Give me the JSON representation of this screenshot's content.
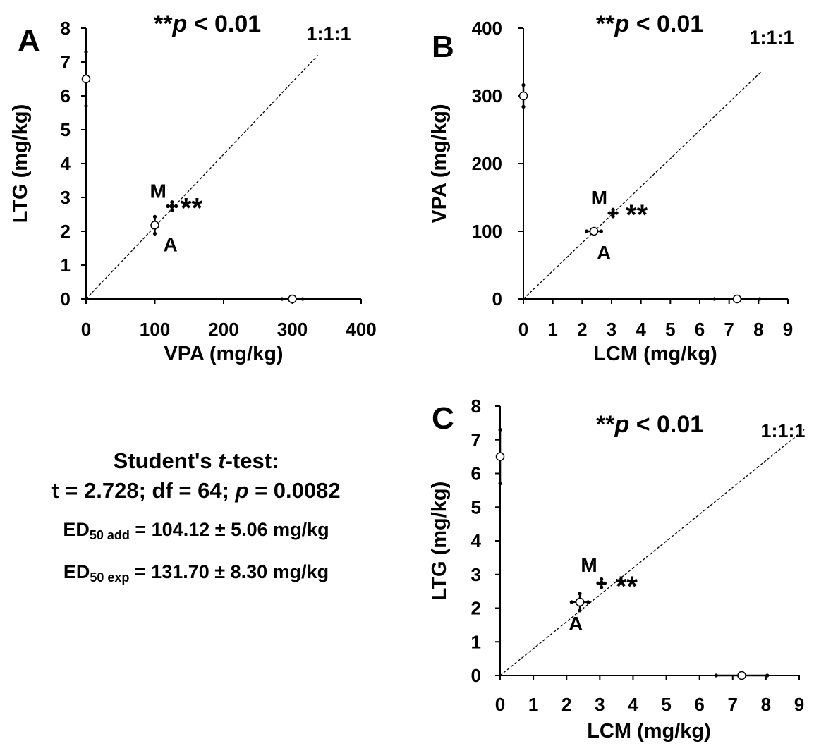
{
  "chart_data": [
    {
      "panel": "A",
      "type": "scatter",
      "xlabel": "VPA (mg/kg)",
      "ylabel": "LTG (mg/kg)",
      "xlim": [
        0,
        400
      ],
      "ylim": [
        0,
        8
      ],
      "xticks": [
        0,
        100,
        200,
        300,
        400
      ],
      "yticks": [
        0,
        1,
        2,
        3,
        4,
        5,
        6,
        7,
        8
      ],
      "significance": "**",
      "p_text": "p",
      "p_cmp": " < 0.01",
      "ratio": "1:1:1",
      "line_end": [
        337,
        7.2
      ],
      "points": [
        {
          "kind": "open",
          "x": 0,
          "y": 6.5,
          "yerr": [
            0.8,
            0.8
          ],
          "xerr": [
            0,
            0
          ]
        },
        {
          "kind": "open",
          "x": 300,
          "y": 0,
          "yerr": [
            0,
            0
          ],
          "xerr": [
            15,
            15
          ]
        },
        {
          "kind": "open",
          "label": "A",
          "x": 100,
          "y": 2.18,
          "yerr": [
            0.25,
            0.25
          ],
          "xerr": [
            0,
            0
          ]
        },
        {
          "kind": "filled",
          "label": "M",
          "stars": "**",
          "x": 125,
          "y": 2.74,
          "yerr": [
            0.12,
            0.12
          ],
          "xerr": [
            6,
            6
          ]
        }
      ]
    },
    {
      "panel": "B",
      "type": "scatter",
      "xlabel": "LCM (mg/kg)",
      "ylabel": "VPA (mg/kg)",
      "xlim": [
        0,
        9
      ],
      "ylim": [
        0,
        400
      ],
      "xticks": [
        0,
        1,
        2,
        3,
        4,
        5,
        6,
        7,
        8,
        9
      ],
      "yticks": [
        0,
        100,
        200,
        300,
        400
      ],
      "significance": "**",
      "p_text": "p",
      "p_cmp": " < 0.01",
      "ratio": "1:1:1",
      "line_end": [
        8.1,
        336
      ],
      "points": [
        {
          "kind": "open",
          "x": 0,
          "y": 300,
          "yerr": [
            16,
            16
          ],
          "xerr": [
            0,
            0
          ]
        },
        {
          "kind": "open",
          "x": 7.27,
          "y": 0,
          "yerr": [
            0,
            0
          ],
          "xerr": [
            0.77,
            0.77
          ]
        },
        {
          "kind": "open",
          "label": "A",
          "x": 2.4,
          "y": 100,
          "yerr": [
            0,
            0
          ],
          "xerr": [
            0.25,
            0.25
          ]
        },
        {
          "kind": "filled",
          "label": "M",
          "stars": "**",
          "x": 3.05,
          "y": 127,
          "yerr": [
            5,
            5
          ],
          "xerr": [
            0.12,
            0.12
          ]
        }
      ]
    },
    {
      "panel": "C",
      "type": "scatter",
      "xlabel": "LCM (mg/kg)",
      "ylabel": "LTG (mg/kg)",
      "xlim": [
        0,
        9
      ],
      "ylim": [
        0,
        8
      ],
      "xticks": [
        0,
        1,
        2,
        3,
        4,
        5,
        6,
        7,
        8,
        9
      ],
      "yticks": [
        0,
        1,
        2,
        3,
        4,
        5,
        6,
        7,
        8
      ],
      "significance": "**",
      "p_text": "p",
      "p_cmp": " < 0.01",
      "ratio": "1:1:1",
      "line_end": [
        9.15,
        7.3
      ],
      "points": [
        {
          "kind": "open",
          "x": 0,
          "y": 6.5,
          "yerr": [
            0.8,
            0.8
          ],
          "xerr": [
            0,
            0
          ]
        },
        {
          "kind": "open",
          "x": 7.27,
          "y": 0,
          "yerr": [
            0,
            0
          ],
          "xerr": [
            0.77,
            0.77
          ]
        },
        {
          "kind": "open",
          "label": "A",
          "x": 2.4,
          "y": 2.18,
          "yerr": [
            0.25,
            0.25
          ],
          "xerr": [
            0.25,
            0.25
          ]
        },
        {
          "kind": "filled",
          "label": "M",
          "stars": "**",
          "x": 3.05,
          "y": 2.74,
          "yerr": [
            0.12,
            0.12
          ],
          "xerr": [
            0.1,
            0.1
          ]
        }
      ]
    }
  ],
  "stats": {
    "title_prefix": "Student's ",
    "title_t": "t",
    "title_suffix": "-test:",
    "t_text": "t = 2.728; df = 64; ",
    "p_italic": "p",
    "p_value_text": " = 0.0082",
    "ed_label": "ED",
    "ed_add_sub": "50 add",
    "ed_add_value": " = 104.12 ± 5.06 mg/kg",
    "ed_exp_sub": "50 exp",
    "ed_exp_value": " = 131.70 ± 8.30 mg/kg"
  }
}
